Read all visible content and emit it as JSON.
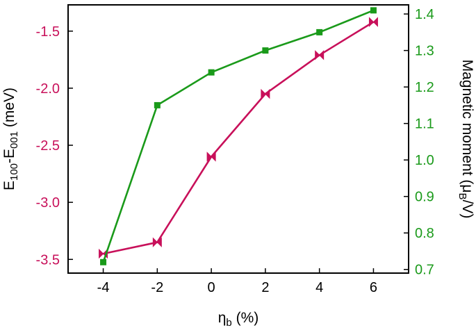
{
  "chart_data": {
    "type": "line",
    "x": [
      -4,
      -2,
      0,
      2,
      4,
      6
    ],
    "xlabel_main": "η",
    "xlabel_sub": "b",
    "xlabel_rest": " (%)",
    "xlim": [
      -5.3,
      7.3
    ],
    "xticks": [
      -4,
      -2,
      0,
      2,
      4,
      6
    ],
    "xtick_labels": [
      "-4",
      "-2",
      "0",
      "2",
      "4",
      "6"
    ],
    "left_axis": {
      "label_parts": {
        "p1": "E",
        "s1": "100",
        "p2": "-E",
        "s2": "001",
        "p3": " (meV)"
      },
      "ylim": [
        -3.62,
        -1.27
      ],
      "yticks": [
        -3.5,
        -3.0,
        -2.5,
        -2.0,
        -1.5
      ],
      "ytick_labels": [
        "-3.5",
        "-3.0",
        "-2.5",
        "-2.0",
        "-1.5"
      ],
      "color": "#c8105a"
    },
    "right_axis": {
      "label_parts": {
        "p1": "Magnetic moment (μ",
        "s1": "B",
        "p2": "/V)"
      },
      "ylim": [
        0.69,
        1.425
      ],
      "yticks": [
        0.7,
        0.8,
        0.9,
        1.0,
        1.1,
        1.2,
        1.3,
        1.4
      ],
      "ytick_labels": [
        "0.7",
        "0.8",
        "0.9",
        "1.0",
        "1.1",
        "1.2",
        "1.3",
        "1.4"
      ],
      "color": "#1a9a1a"
    },
    "series": [
      {
        "axis": "left",
        "values": [
          -3.45,
          -3.35,
          -2.6,
          -2.05,
          -1.71,
          -1.42
        ],
        "color": "#c8105a",
        "marker": "bowtie"
      },
      {
        "axis": "right",
        "values": [
          0.72,
          1.15,
          1.24,
          1.3,
          1.35,
          1.41
        ],
        "color": "#1a9a1a",
        "marker": "square"
      }
    ],
    "grid": false,
    "legend": "none"
  }
}
